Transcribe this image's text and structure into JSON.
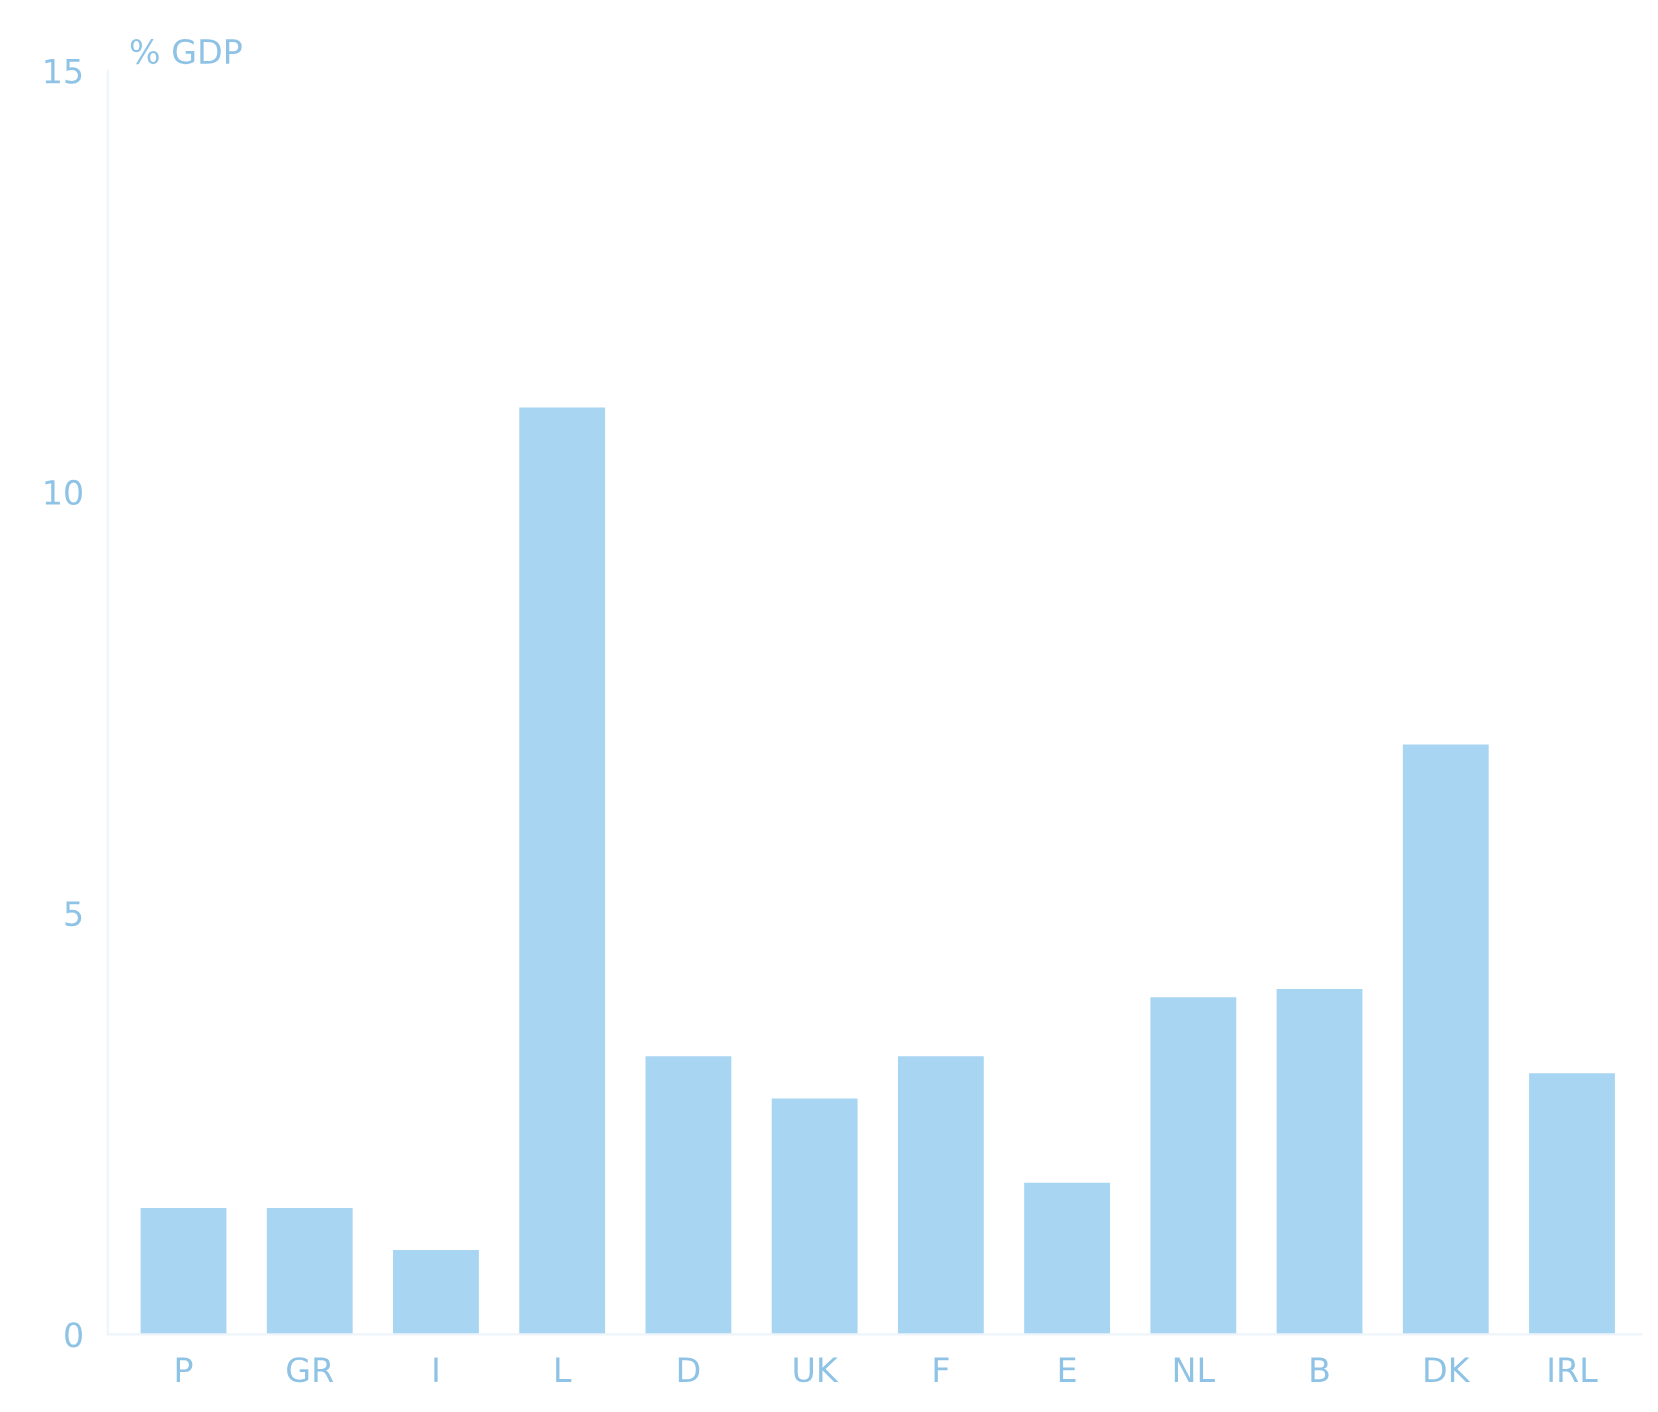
{
  "chart_data": {
    "type": "bar",
    "ylabel": "% GDP",
    "categories": [
      "P",
      "GR",
      "I",
      "L",
      "D",
      "UK",
      "F",
      "E",
      "NL",
      "B",
      "DK",
      "IRL"
    ],
    "values": [
      1.5,
      1.5,
      1.0,
      11.0,
      3.3,
      2.8,
      3.3,
      1.8,
      4.0,
      4.1,
      7.0,
      3.1
    ],
    "color": "#a8d5f2",
    "ylim": [
      0,
      15
    ],
    "yticks": [
      0,
      5,
      10,
      15
    ],
    "grid": false
  }
}
